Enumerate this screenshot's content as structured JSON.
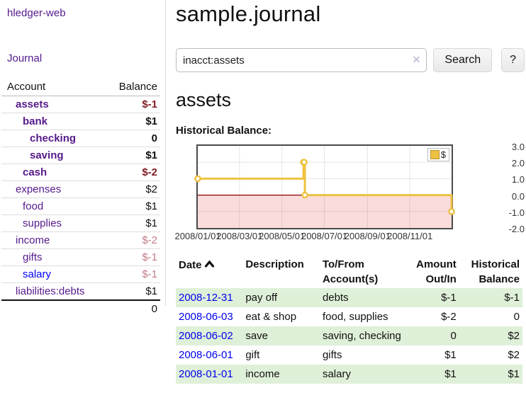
{
  "colors": {
    "link_purple": "#551a8b",
    "link_blue": "#0000ee",
    "negative_strong": "#7f1c26",
    "negative_soft": "#bf7b84",
    "row_highlight_green": "#dff0d8",
    "chart_series_gold": "#edc240",
    "chart_negative_region": "#fbdcdc",
    "chart_zero_line": "#8b0000"
  },
  "sidebar": {
    "brand": "hledger-web",
    "journal_link": "Journal",
    "account_header": "Account",
    "balance_header": "Balance",
    "accounts": [
      {
        "name": "assets",
        "depth": 1,
        "bold": true,
        "link_tone": "purple",
        "balance": "$-1",
        "tone": "neg-strong"
      },
      {
        "name": "bank",
        "depth": 2,
        "bold": true,
        "link_tone": "purple",
        "balance": "$1",
        "tone": "pos"
      },
      {
        "name": "checking",
        "depth": 3,
        "bold": true,
        "link_tone": "purple",
        "balance": "0",
        "tone": "pos"
      },
      {
        "name": "saving",
        "depth": 3,
        "bold": true,
        "link_tone": "purple",
        "balance": "$1",
        "tone": "pos"
      },
      {
        "name": "cash",
        "depth": 2,
        "bold": true,
        "link_tone": "purple",
        "balance": "$-2",
        "tone": "neg-strong"
      },
      {
        "name": "expenses",
        "depth": 1,
        "bold": false,
        "link_tone": "purple",
        "balance": "$2",
        "tone": "pos"
      },
      {
        "name": "food",
        "depth": 2,
        "bold": false,
        "link_tone": "purple",
        "balance": "$1",
        "tone": "pos"
      },
      {
        "name": "supplies",
        "depth": 2,
        "bold": false,
        "link_tone": "purple",
        "balance": "$1",
        "tone": "pos"
      },
      {
        "name": "income",
        "depth": 1,
        "bold": false,
        "link_tone": "purple",
        "balance": "$-2",
        "tone": "neg-soft"
      },
      {
        "name": "gifts",
        "depth": 2,
        "bold": false,
        "link_tone": "purple",
        "balance": "$-1",
        "tone": "neg-soft"
      },
      {
        "name": "salary",
        "depth": 2,
        "bold": false,
        "link_tone": "blue",
        "balance": "$-1",
        "tone": "neg-soft"
      },
      {
        "name": "liabilities:debts",
        "depth": 1,
        "bold": false,
        "link_tone": "purple",
        "balance": "$1",
        "tone": "pos"
      }
    ],
    "total": "0"
  },
  "main": {
    "title": "sample.journal",
    "search": {
      "value": "inacct:assets",
      "clear_icon": "✕",
      "search_button": "Search",
      "help_button": "?"
    },
    "section_title": "assets",
    "chart_label": "Historical Balance:"
  },
  "chart_data": {
    "type": "line",
    "title": "Historical Balance",
    "step": true,
    "xlim": [
      "2008-01-01",
      "2008-12-31"
    ],
    "ylim": [
      -2,
      3
    ],
    "y_ticks": [
      3.0,
      2.0,
      1.0,
      0.0,
      -1.0,
      -2.0
    ],
    "y_tick_labels": [
      "3.0",
      "2.0",
      "1.0",
      "0.0",
      "-1.0",
      "-2.0"
    ],
    "x_ticks": [
      "2008-01-01",
      "2008-03-01",
      "2008-05-01",
      "2008-07-01",
      "2008-09-01",
      "2008-11-01"
    ],
    "x_tick_labels": [
      "2008/01/01",
      "2008/03/01",
      "2008/05/01",
      "2008/07/01",
      "2008/09/01",
      "2008/11/01"
    ],
    "grid": true,
    "legend": {
      "label": "$",
      "position": "top-right"
    },
    "series": [
      {
        "name": "$",
        "points": [
          {
            "date": "2008-01-01",
            "value": 1
          },
          {
            "date": "2008-06-01",
            "value": 2
          },
          {
            "date": "2008-06-02",
            "value": 2
          },
          {
            "date": "2008-06-03",
            "value": 0
          },
          {
            "date": "2008-12-31",
            "value": -1
          }
        ]
      }
    ]
  },
  "register": {
    "headers": {
      "date": "Date",
      "description": "Description",
      "account": "To/From Account(s)",
      "amount": "Amount Out/In",
      "balance": "Historical Balance"
    },
    "rows": [
      {
        "date": "2008-12-31",
        "description": "pay off",
        "accounts": "debts",
        "amount": "$-1",
        "amount_tone": "neg",
        "balance": "$-1",
        "balance_tone": "neg",
        "highlight": true
      },
      {
        "date": "2008-06-03",
        "description": "eat & shop",
        "accounts": "food, supplies",
        "amount": "$-2",
        "amount_tone": "neg",
        "balance": "0",
        "balance_tone": "pos",
        "highlight": false
      },
      {
        "date": "2008-06-02",
        "description": "save",
        "accounts": "saving, checking",
        "amount": "0",
        "amount_tone": "pos",
        "balance": "$2",
        "balance_tone": "pos",
        "highlight": true
      },
      {
        "date": "2008-06-01",
        "description": "gift",
        "accounts": "gifts",
        "amount": "$1",
        "amount_tone": "pos",
        "balance": "$2",
        "balance_tone": "pos",
        "highlight": false
      },
      {
        "date": "2008-01-01",
        "description": "income",
        "accounts": "salary",
        "amount": "$1",
        "amount_tone": "pos",
        "balance": "$1",
        "balance_tone": "pos",
        "highlight": true
      }
    ]
  }
}
